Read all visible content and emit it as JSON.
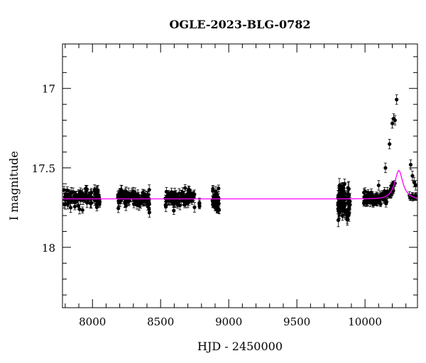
{
  "chart_data": {
    "type": "scatter",
    "title": "OGLE-2023-BLG-0782",
    "xlabel": "HJD - 2450000",
    "ylabel": "I magnitude",
    "xlim": [
      7780,
      10385
    ],
    "ylim": [
      18.38,
      16.72
    ],
    "y_inverted": true,
    "xticks": [
      8000,
      8500,
      9000,
      9500,
      10000
    ],
    "yticks": [
      17,
      17.5,
      18
    ],
    "xtick_labels": [
      "8000",
      "8500",
      "9000",
      "9500",
      "10000"
    ],
    "ytick_labels": [
      "17",
      "17.5",
      "18"
    ],
    "x_minor_step": 100,
    "y_minor_step": 0.1,
    "grid": false,
    "legend": "none",
    "colors": {
      "data": "#000000",
      "model": "#ff00ff"
    },
    "model": {
      "name": "",
      "baseline": 17.695,
      "t0": 10248,
      "tE": 58,
      "u0": 0.52,
      "fs": 0.16
    },
    "series": [
      {
        "name": "",
        "segments": [
          {
            "x_range": [
              7790,
              8055
            ],
            "n": 110,
            "y_mean": 17.69,
            "y_scatter": 0.025,
            "err": 0.025
          },
          {
            "x_range": [
              8185,
              8420
            ],
            "n": 110,
            "y_mean": 17.69,
            "y_scatter": 0.025,
            "err": 0.025
          },
          {
            "x_range": [
              8535,
              8750
            ],
            "n": 100,
            "y_mean": 17.69,
            "y_scatter": 0.025,
            "err": 0.025
          },
          {
            "x_range": [
              8780,
              8790
            ],
            "n": 2,
            "y_mean": 17.72,
            "y_scatter": 0.01,
            "err": 0.02
          },
          {
            "x_range": [
              8880,
              8930
            ],
            "n": 40,
            "y_mean": 17.7,
            "y_scatter": 0.03,
            "err": 0.025
          },
          {
            "x_range": [
              9800,
              9890
            ],
            "n": 80,
            "y_mean": 17.71,
            "y_scatter": 0.05,
            "err": 0.04
          },
          {
            "x_range": [
              9990,
              10220
            ],
            "n": 95,
            "follows_model": true,
            "y_scatter": 0.02,
            "err": 0.02
          },
          {
            "x_range": [
              10325,
              10375
            ],
            "n": 10,
            "follows_model": true,
            "y_scatter": 0.01,
            "err": 0.02
          }
        ],
        "points": [
          {
            "x": 7800,
            "y": 17.73
          },
          {
            "x": 7840,
            "y": 17.75
          },
          {
            "x": 7905,
            "y": 17.76
          },
          {
            "x": 7960,
            "y": 17.72
          },
          {
            "x": 8040,
            "y": 17.64
          },
          {
            "x": 8290,
            "y": 17.66
          },
          {
            "x": 8415,
            "y": 17.76
          },
          {
            "x": 8418,
            "y": 17.78
          },
          {
            "x": 8785,
            "y": 17.72
          },
          {
            "x": 8895,
            "y": 17.67
          },
          {
            "x": 8905,
            "y": 17.74
          },
          {
            "x": 8915,
            "y": 17.75
          },
          {
            "x": 9815,
            "y": 17.63
          },
          {
            "x": 9835,
            "y": 17.8
          },
          {
            "x": 9850,
            "y": 17.6
          },
          {
            "x": 10000,
            "y": 17.68
          },
          {
            "x": 10100,
            "y": 17.61
          },
          {
            "x": 10150,
            "y": 17.5
          },
          {
            "x": 10180,
            "y": 17.35
          },
          {
            "x": 10200,
            "y": 17.22
          },
          {
            "x": 10210,
            "y": 17.19
          },
          {
            "x": 10220,
            "y": 17.2
          },
          {
            "x": 10232,
            "y": 17.07
          },
          {
            "x": 10335,
            "y": 17.48
          },
          {
            "x": 10348,
            "y": 17.55
          },
          {
            "x": 10360,
            "y": 17.59
          },
          {
            "x": 10372,
            "y": 17.61
          }
        ]
      }
    ]
  }
}
